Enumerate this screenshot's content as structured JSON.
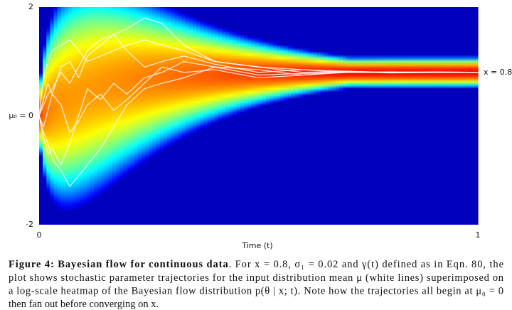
{
  "chart_data": {
    "type": "flow-heatmap",
    "xlabel": "Time (t)",
    "xlim": [
      0,
      1
    ],
    "xticks": [
      0,
      1
    ],
    "ylim": [
      -2,
      2
    ],
    "yticks": [
      -2,
      {
        "value": 0,
        "label": "μ₀ = 0"
      },
      2
    ],
    "target": {
      "value": 0.8,
      "label": "x = 0.8"
    },
    "sigma1": 0.02,
    "color_scale": "log",
    "grid": false,
    "x": [
      0,
      0.01,
      0.02,
      0.03,
      0.05,
      0.07,
      0.09,
      0.11,
      0.14,
      0.17,
      0.2,
      0.24,
      0.28,
      0.33,
      0.4,
      0.5,
      0.6,
      0.7,
      0.8,
      0.9,
      1.0
    ],
    "series": [
      {
        "color": "#ffffff",
        "values": [
          0,
          0.3,
          0.6,
          0.4,
          0.9,
          1.0,
          0.7,
          1.1,
          1.3,
          1.5,
          1.6,
          1.8,
          1.7,
          1.3,
          1.0,
          0.9,
          0.85,
          0.82,
          0.8,
          0.8,
          0.8
        ]
      },
      {
        "color": "#ffffff",
        "values": [
          0,
          -0.3,
          -0.5,
          -0.8,
          -1.0,
          -1.3,
          -1.1,
          -0.9,
          -0.6,
          -0.2,
          0.2,
          0.5,
          0.6,
          0.7,
          0.9,
          0.85,
          0.75,
          0.8,
          0.8,
          0.8,
          0.8
        ]
      },
      {
        "color": "#ffffff",
        "values": [
          0,
          0.7,
          1.0,
          1.2,
          1.3,
          1.4,
          1.2,
          1.0,
          1.1,
          1.2,
          1.3,
          1.4,
          1.3,
          1.2,
          1.0,
          0.9,
          0.8,
          0.82,
          0.79,
          0.8,
          0.8
        ]
      },
      {
        "color": "#ffffff",
        "values": [
          0,
          -0.2,
          0.1,
          0.4,
          0.2,
          -0.3,
          -0.1,
          0.2,
          0.4,
          0.1,
          0.3,
          0.6,
          0.9,
          0.8,
          0.85,
          0.7,
          0.75,
          0.82,
          0.8,
          0.81,
          0.8
        ]
      },
      {
        "color": "#ffffff",
        "values": [
          0,
          0.2,
          0.4,
          0.5,
          0.8,
          0.6,
          0.9,
          1.2,
          1.4,
          1.5,
          1.2,
          0.9,
          1.0,
          1.1,
          0.95,
          0.8,
          0.85,
          0.8,
          0.8,
          0.8,
          0.8
        ]
      },
      {
        "color": "#ffffff",
        "values": [
          0,
          -0.4,
          -0.7,
          -0.6,
          -0.9,
          -0.5,
          0.0,
          0.5,
          0.3,
          0.6,
          0.4,
          0.7,
          0.8,
          1.0,
          0.9,
          0.75,
          0.78,
          0.8,
          0.81,
          0.8,
          0.8
        ]
      }
    ]
  },
  "caption": {
    "bold": "Figure 4: Bayesian flow for continuous data",
    "lines": [
      ". For x = 0.8, σ₁ = 0.02 and γ(t) defined as in Eqn. 80, the",
      "plot shows stochastic parameter trajectories for the input distribution mean μ (white lines) superimposed on",
      "a log-scale heatmap of the Bayesian flow distribution p(θ | x; t). Note how the trajectories all begin at μ₀ = 0",
      "then fan out before converging on x."
    ]
  }
}
